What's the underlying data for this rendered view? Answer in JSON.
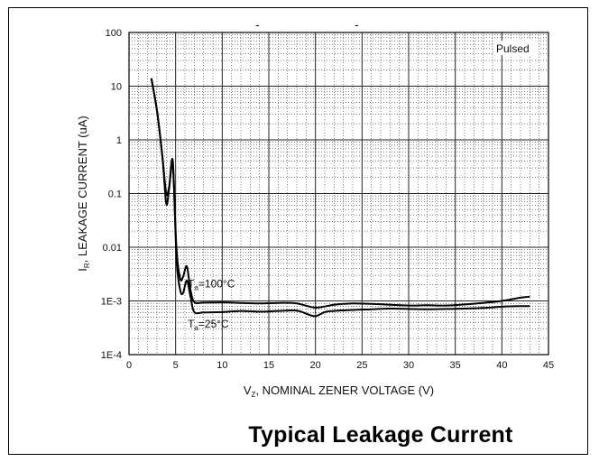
{
  "chart_data": {
    "type": "line",
    "title": "Typical Leakage Current",
    "xlabel": "V_Z, NOMINAL ZENER VOLTAGE (V)",
    "ylabel": "I_R, LEAKAGE CURRENT (uA)",
    "xlabel_parts": {
      "v": "V",
      "sub": "Z",
      "rest": ", NOMINAL ZENER VOLTAGE (V)"
    },
    "ylabel_parts": {
      "i": "I",
      "sub": "R",
      "rest": ", LEAKAGE CURRENT (uA)"
    },
    "xlim": [
      0,
      45
    ],
    "ylim": [
      0.0001,
      100
    ],
    "y_scale": "log",
    "x_ticks": [
      "0",
      "5",
      "10",
      "15",
      "20",
      "25",
      "30",
      "35",
      "40",
      "45"
    ],
    "y_ticks": [
      "100",
      "10",
      "1",
      "0.1",
      "0.01",
      "1E-3",
      "1E-4"
    ],
    "grid": true,
    "annotation": "Pulsed",
    "series": [
      {
        "name": "Ta=100°C",
        "label_parts": {
          "t": "T",
          "sub": "a",
          "rest": "=100°C"
        },
        "x": [
          2.4,
          3.0,
          3.6,
          4.0,
          4.3,
          4.7,
          5.1,
          5.5,
          5.8,
          6.2,
          6.6,
          7.0,
          8,
          10,
          12,
          14,
          16,
          18,
          20,
          22,
          24,
          26,
          28,
          30,
          32,
          34,
          36,
          38,
          40,
          42,
          43
        ],
        "values": [
          14,
          3.5,
          0.45,
          0.1,
          0.13,
          0.32,
          0.009,
          0.0026,
          0.0028,
          0.0044,
          0.0016,
          0.00095,
          0.00093,
          0.00094,
          0.00092,
          0.0009,
          0.00092,
          0.0009,
          0.00075,
          0.00085,
          0.0009,
          0.00088,
          0.00085,
          0.00082,
          0.00083,
          0.00082,
          0.00086,
          0.00092,
          0.001,
          0.00115,
          0.0012
        ]
      },
      {
        "name": "Ta=25°C",
        "label_parts": {
          "t": "T",
          "sub": "a",
          "rest": "=25°C"
        },
        "x": [
          2.4,
          3.0,
          3.6,
          4.0,
          4.3,
          4.7,
          5.1,
          5.5,
          5.8,
          6.2,
          6.6,
          7.0,
          8,
          10,
          12,
          14,
          16,
          18,
          19,
          20,
          21,
          22,
          24,
          26,
          28,
          30,
          32,
          34,
          36,
          38,
          40,
          42,
          43
        ],
        "values": [
          14,
          3.5,
          0.45,
          0.065,
          0.12,
          0.4,
          0.006,
          0.0016,
          0.0014,
          0.0024,
          0.0012,
          0.00062,
          0.00061,
          0.00062,
          0.00065,
          0.00063,
          0.00065,
          0.00066,
          0.00058,
          0.00052,
          0.00062,
          0.00065,
          0.00068,
          0.0007,
          0.00072,
          0.00071,
          0.0007,
          0.00071,
          0.00072,
          0.00074,
          0.00078,
          0.0008,
          0.0008
        ]
      }
    ]
  },
  "top_marks": [
    "-",
    "-"
  ]
}
